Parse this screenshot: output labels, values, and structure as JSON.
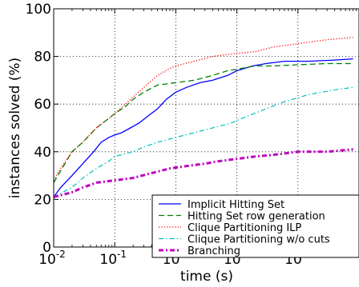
{
  "chart_data": {
    "type": "line",
    "xlabel": "time (s)",
    "ylabel": "instances solved (%)",
    "xscale": "log",
    "xlim": [
      0.01,
      1000
    ],
    "ylim": [
      0,
      100
    ],
    "grid": true,
    "legend_position": "bottom-right",
    "x_ticks": [
      {
        "value": 0.01,
        "base": "10",
        "exp": "-2"
      },
      {
        "value": 0.1,
        "base": "10",
        "exp": "-1"
      },
      {
        "value": 1,
        "base": "10",
        "exp": "0"
      },
      {
        "value": 10,
        "base": "10",
        "exp": "1"
      },
      {
        "value": 100,
        "base": "10",
        "exp": "2"
      }
    ],
    "y_ticks": [
      "0",
      "20",
      "40",
      "60",
      "80",
      "100"
    ],
    "series": [
      {
        "name": "Implicit Hitting Set",
        "color": "#0000ff",
        "dash": "solid",
        "points": [
          [
            0.01,
            21
          ],
          [
            0.013,
            25
          ],
          [
            0.02,
            30
          ],
          [
            0.03,
            35
          ],
          [
            0.045,
            40
          ],
          [
            0.06,
            44
          ],
          [
            0.08,
            46
          ],
          [
            0.1,
            47
          ],
          [
            0.13,
            48
          ],
          [
            0.18,
            50
          ],
          [
            0.25,
            52
          ],
          [
            0.35,
            55
          ],
          [
            0.5,
            58
          ],
          [
            0.7,
            62
          ],
          [
            1,
            65
          ],
          [
            1.5,
            67
          ],
          [
            2.5,
            69
          ],
          [
            4,
            70
          ],
          [
            7,
            72
          ],
          [
            10,
            74
          ],
          [
            18,
            76
          ],
          [
            30,
            77
          ],
          [
            60,
            78
          ],
          [
            150,
            78
          ],
          [
            400,
            78.5
          ],
          [
            800,
            79
          ]
        ]
      },
      {
        "name": "Hitting Set row generation",
        "color": "#008000",
        "dash": "dashed",
        "points": [
          [
            0.01,
            27
          ],
          [
            0.013,
            32
          ],
          [
            0.02,
            40
          ],
          [
            0.03,
            44
          ],
          [
            0.05,
            50
          ],
          [
            0.08,
            54
          ],
          [
            0.1,
            56
          ],
          [
            0.15,
            59
          ],
          [
            0.2,
            62
          ],
          [
            0.3,
            65
          ],
          [
            0.5,
            68
          ],
          [
            1,
            69
          ],
          [
            2,
            70
          ],
          [
            4,
            72
          ],
          [
            7,
            74
          ],
          [
            12,
            75
          ],
          [
            20,
            76
          ],
          [
            40,
            76
          ],
          [
            100,
            76.5
          ],
          [
            300,
            77
          ],
          [
            800,
            77
          ]
        ]
      },
      {
        "name": "Clique Partitioning ILP",
        "color": "#ff0000",
        "dash": "dotted",
        "points": [
          [
            0.01,
            28
          ],
          [
            0.013,
            33
          ],
          [
            0.02,
            40
          ],
          [
            0.03,
            44
          ],
          [
            0.05,
            50
          ],
          [
            0.08,
            54
          ],
          [
            0.1,
            56
          ],
          [
            0.15,
            60
          ],
          [
            0.2,
            63
          ],
          [
            0.3,
            67
          ],
          [
            0.5,
            72
          ],
          [
            0.8,
            75
          ],
          [
            1,
            76
          ],
          [
            2,
            78
          ],
          [
            4,
            80
          ],
          [
            8,
            81
          ],
          [
            20,
            82
          ],
          [
            40,
            84
          ],
          [
            80,
            85
          ],
          [
            150,
            86
          ],
          [
            300,
            87
          ],
          [
            800,
            88
          ]
        ]
      },
      {
        "name": "Clique Partitioning w/o cuts",
        "color": "#00bfbf",
        "dash": "dashdot",
        "points": [
          [
            0.01,
            21
          ],
          [
            0.02,
            25
          ],
          [
            0.03,
            29
          ],
          [
            0.05,
            33
          ],
          [
            0.08,
            36
          ],
          [
            0.1,
            38
          ],
          [
            0.2,
            40
          ],
          [
            0.3,
            42
          ],
          [
            0.5,
            44
          ],
          [
            1,
            46
          ],
          [
            2,
            48
          ],
          [
            4,
            50
          ],
          [
            8,
            52
          ],
          [
            15,
            55
          ],
          [
            30,
            58
          ],
          [
            60,
            61
          ],
          [
            150,
            64
          ],
          [
            400,
            66
          ],
          [
            800,
            67
          ]
        ]
      },
      {
        "name": "Branching",
        "color": "#bf00bf",
        "dash": "dashdotthick",
        "points": [
          [
            0.01,
            21
          ],
          [
            0.02,
            23
          ],
          [
            0.03,
            25
          ],
          [
            0.05,
            27
          ],
          [
            0.1,
            28
          ],
          [
            0.2,
            29
          ],
          [
            0.4,
            31
          ],
          [
            0.8,
            33
          ],
          [
            1.5,
            34
          ],
          [
            3,
            35
          ],
          [
            5,
            36
          ],
          [
            10,
            37
          ],
          [
            20,
            38
          ],
          [
            50,
            39
          ],
          [
            100,
            40
          ],
          [
            300,
            40
          ],
          [
            800,
            41
          ]
        ]
      }
    ]
  }
}
